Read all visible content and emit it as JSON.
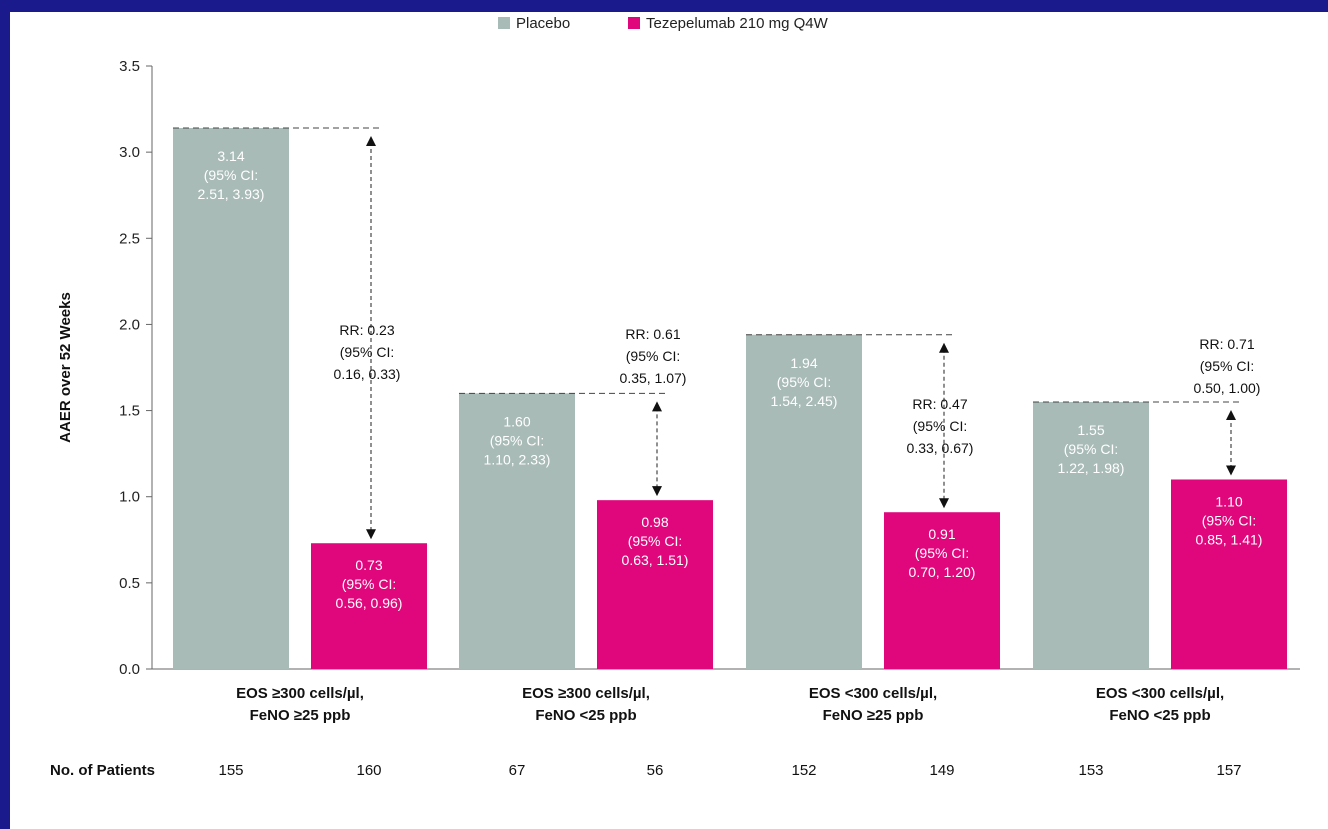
{
  "chart_data": {
    "type": "bar",
    "ylabel": "AAER over 52 Weeks",
    "ylim": [
      0,
      3.5
    ],
    "yticks": [
      "0.0",
      "0.5",
      "1.0",
      "1.5",
      "2.0",
      "2.5",
      "3.0",
      "3.5"
    ],
    "legend": {
      "placement": "top",
      "entries": [
        {
          "name": "Placebo",
          "color": "#a8bbb7"
        },
        {
          "name": "Tezepelumab 210 mg Q4W",
          "color": "#e0077d"
        }
      ]
    },
    "categories": [
      [
        "EOS ≥300 cells/µl,",
        "FeNO ≥25 ppb"
      ],
      [
        "EOS ≥300 cells/µl,",
        "FeNO <25 ppb"
      ],
      [
        "EOS <300 cells/µl,",
        "FeNO ≥25 ppb"
      ],
      [
        "EOS <300 cells/µl,",
        "FeNO <25 ppb"
      ]
    ],
    "series": [
      {
        "name": "Placebo",
        "color": "#a8bbb7",
        "values": [
          3.14,
          1.6,
          1.94,
          1.55
        ],
        "labels": [
          [
            "3.14",
            "(95% CI:",
            "2.51, 3.93)"
          ],
          [
            "1.60",
            "(95% CI:",
            "1.10, 2.33)"
          ],
          [
            "1.94",
            "(95% CI:",
            "1.54, 2.45)"
          ],
          [
            "1.55",
            "(95% CI:",
            "1.22, 1.98)"
          ]
        ]
      },
      {
        "name": "Tezepelumab 210 mg Q4W",
        "color": "#e0077d",
        "values": [
          0.73,
          0.98,
          0.91,
          1.1
        ],
        "labels": [
          [
            "0.73",
            "(95% CI:",
            "0.56, 0.96)"
          ],
          [
            "0.98",
            "(95% CI:",
            "0.63, 1.51)"
          ],
          [
            "0.91",
            "(95% CI:",
            "0.70, 1.20)"
          ],
          [
            "1.10",
            "(95% CI:",
            "0.85, 1.41)"
          ]
        ]
      }
    ],
    "rate_ratios": [
      [
        "RR: 0.23",
        "(95% CI:",
        "0.16, 0.33)"
      ],
      [
        "RR: 0.61",
        "(95% CI:",
        "0.35, 1.07)"
      ],
      [
        "RR: 0.47",
        "(95% CI:",
        "0.33, 0.67)"
      ],
      [
        "RR: 0.71",
        "(95% CI:",
        "0.50, 1.00)"
      ]
    ],
    "patients": {
      "title": "No. of Patients",
      "values": [
        "155",
        "160",
        "67",
        "56",
        "152",
        "149",
        "153",
        "157"
      ]
    }
  }
}
